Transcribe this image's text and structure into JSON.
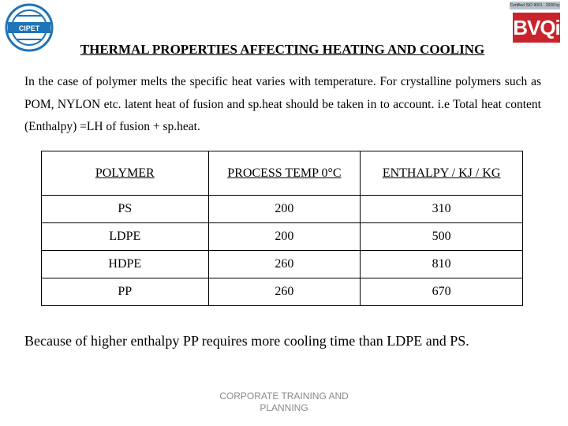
{
  "header": {
    "left_logo_name": "CIPET",
    "right_logo_cert_text": "Certified ISO 9001 : 2008 by",
    "right_logo_name": "BVQi"
  },
  "title": "THERMAL PROPERTIES AFFECTING HEATING AND COOLING",
  "intro": "In the case of polymer melts the specific heat varies with temperature. For crystalline polymers such as POM, NYLON etc. latent heat of fusion and sp.heat should be taken in to account.   i.e Total heat content (Enthalpy) =LH of fusion + sp.heat.",
  "table": {
    "headers": [
      "POLYMER",
      "PROCESS TEMP 0°C",
      "ENTHALPY  / KJ / KG"
    ],
    "rows": [
      [
        "PS",
        "200",
        "310"
      ],
      [
        "LDPE",
        "200",
        "500"
      ],
      [
        "HDPE",
        "260",
        "810"
      ],
      [
        "PP",
        "260",
        "670"
      ]
    ]
  },
  "conclusion": "Because of higher enthalpy PP requires more cooling time than LDPE and PS.",
  "footer": [
    "CORPORATE TRAINING AND",
    "PLANNING"
  ],
  "colors": {
    "logo_blue": "#1f73b8",
    "logo_red": "#c9242b",
    "footer_gray": "#8a8a8a"
  }
}
